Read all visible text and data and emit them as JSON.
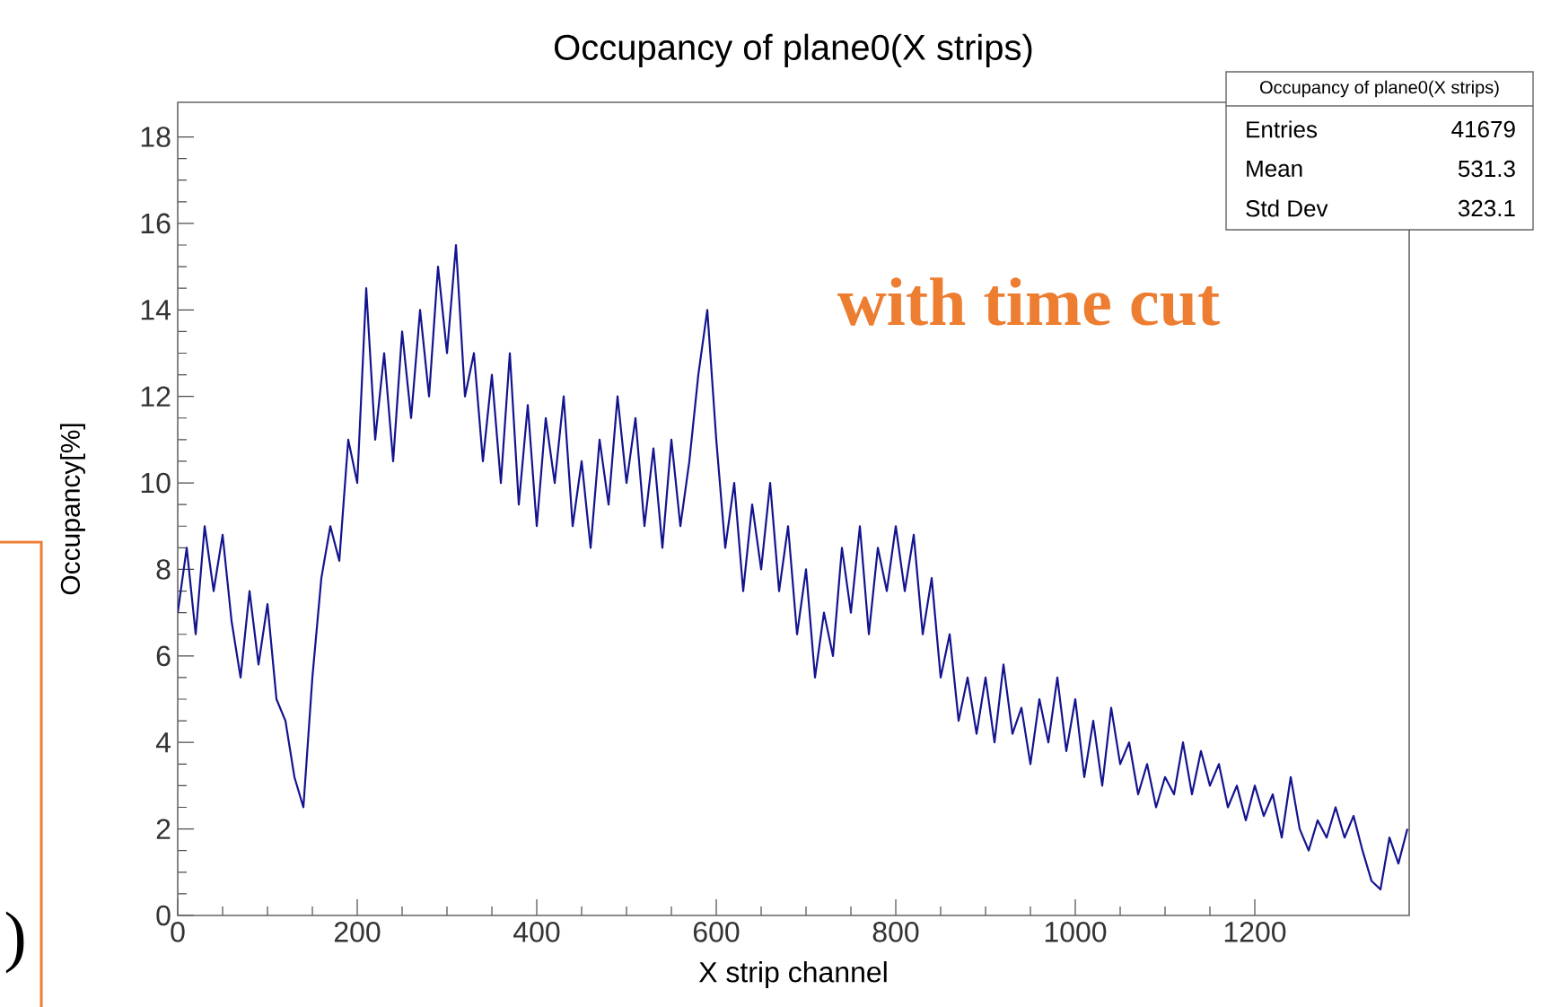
{
  "chart_data": {
    "type": "line",
    "title": "Occupancy of plane0(X strips)",
    "xlabel": "X strip channel",
    "ylabel": "Occupancy[%]",
    "color": "#14148f",
    "xlim": [
      0,
      1372
    ],
    "ylim": [
      0,
      18.8
    ],
    "xticks": [
      0,
      200,
      400,
      600,
      800,
      1000,
      1200
    ],
    "yticks": [
      0,
      2,
      4,
      6,
      8,
      10,
      12,
      14,
      16,
      18
    ],
    "x": [
      0,
      10,
      20,
      30,
      40,
      50,
      60,
      70,
      80,
      90,
      100,
      110,
      120,
      130,
      140,
      150,
      160,
      170,
      180,
      190,
      200,
      210,
      220,
      230,
      240,
      250,
      260,
      270,
      280,
      290,
      300,
      310,
      320,
      330,
      340,
      350,
      360,
      370,
      380,
      390,
      400,
      410,
      420,
      430,
      440,
      450,
      460,
      470,
      480,
      490,
      500,
      510,
      520,
      530,
      540,
      550,
      560,
      570,
      580,
      590,
      600,
      610,
      620,
      630,
      640,
      650,
      660,
      670,
      680,
      690,
      700,
      710,
      720,
      730,
      740,
      750,
      760,
      770,
      780,
      790,
      800,
      810,
      820,
      830,
      840,
      850,
      860,
      870,
      880,
      890,
      900,
      910,
      920,
      930,
      940,
      950,
      960,
      970,
      980,
      990,
      1000,
      1010,
      1020,
      1030,
      1040,
      1050,
      1060,
      1070,
      1080,
      1090,
      1100,
      1110,
      1120,
      1130,
      1140,
      1150,
      1160,
      1170,
      1180,
      1190,
      1200,
      1210,
      1220,
      1230,
      1240,
      1250,
      1260,
      1270,
      1280,
      1290,
      1300,
      1310,
      1320,
      1330,
      1340,
      1350,
      1360,
      1370
    ],
    "values": [
      7,
      8.5,
      6.5,
      9,
      7.5,
      8.8,
      6.8,
      5.5,
      7.5,
      5.8,
      7.2,
      5,
      4.5,
      3.2,
      2.5,
      5.5,
      7.8,
      9,
      8.2,
      11,
      10,
      14.5,
      11,
      13,
      10.5,
      13.5,
      11.5,
      14,
      12,
      15,
      13,
      15.5,
      12,
      13,
      10.5,
      12.5,
      10,
      13,
      9.5,
      11.8,
      9,
      11.5,
      10,
      12,
      9,
      10.5,
      8.5,
      11,
      9.5,
      12,
      10,
      11.5,
      9,
      10.8,
      8.5,
      11,
      9,
      10.5,
      12.5,
      14,
      11,
      8.5,
      10,
      7.5,
      9.5,
      8,
      10,
      7.5,
      9,
      6.5,
      8,
      5.5,
      7,
      6,
      8.5,
      7,
      9,
      6.5,
      8.5,
      7.5,
      9,
      7.5,
      8.8,
      6.5,
      7.8,
      5.5,
      6.5,
      4.5,
      5.5,
      4.2,
      5.5,
      4,
      5.8,
      4.2,
      4.8,
      3.5,
      5,
      4,
      5.5,
      3.8,
      5,
      3.2,
      4.5,
      3,
      4.8,
      3.5,
      4,
      2.8,
      3.5,
      2.5,
      3.2,
      2.8,
      4,
      2.8,
      3.8,
      3,
      3.5,
      2.5,
      3,
      2.2,
      3,
      2.3,
      2.8,
      1.8,
      3.2,
      2,
      1.5,
      2.2,
      1.8,
      2.5,
      1.8,
      2.3,
      1.5,
      0.8,
      0.6,
      1.8,
      1.2,
      2
    ],
    "annotations": [
      "Occupancy of plane0(X strips)",
      "Entries",
      "41679",
      "Mean",
      "531.3",
      "Std Dev",
      "323.1",
      "with time cut",
      ")"
    ]
  }
}
